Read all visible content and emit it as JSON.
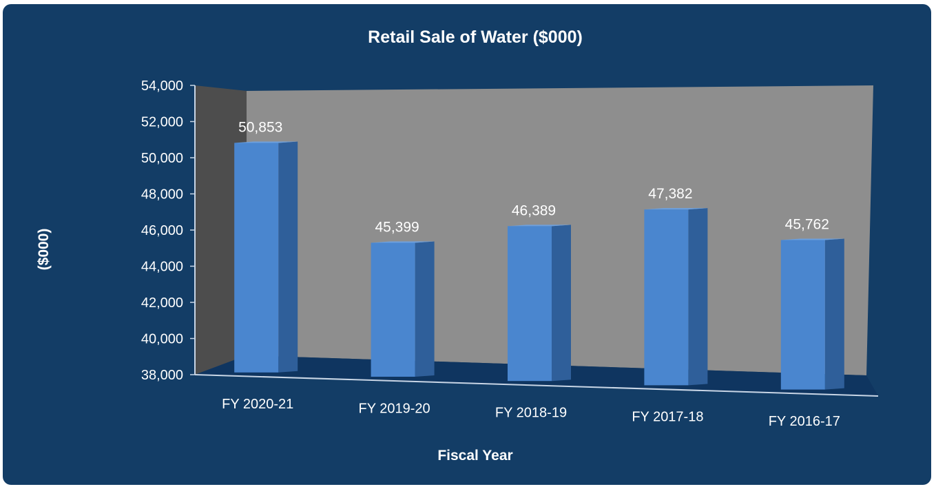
{
  "chart_data": {
    "type": "bar",
    "title": "Retail Sale of Water ($000)",
    "xlabel": "Fiscal Year",
    "ylabel": "($000)",
    "categories": [
      "FY 2020-21",
      "FY 2019-20",
      "FY 2018-19",
      "FY 2017-18",
      "FY 2016-17"
    ],
    "values": [
      50853,
      45399,
      46389,
      47382,
      45762
    ],
    "value_labels": [
      "50,853",
      "45,399",
      "46,389",
      "47,382",
      "45,762"
    ],
    "ylim": [
      38000,
      54000
    ],
    "yticks": [
      38000,
      40000,
      42000,
      44000,
      46000,
      48000,
      50000,
      52000,
      54000
    ],
    "ytick_labels": [
      "38,000",
      "40,000",
      "42,000",
      "44,000",
      "46,000",
      "48,000",
      "50,000",
      "52,000",
      "54,000"
    ],
    "grid": false,
    "legend": "none",
    "colors": {
      "background": "#133d66",
      "bar_front": "#4a86cf",
      "bar_side": "#2f5f9a",
      "bar_top": "#6da0de",
      "back_wall": "#8e8e8e",
      "side_wall": "#4d4d4d",
      "floor": "#0f3560"
    }
  }
}
